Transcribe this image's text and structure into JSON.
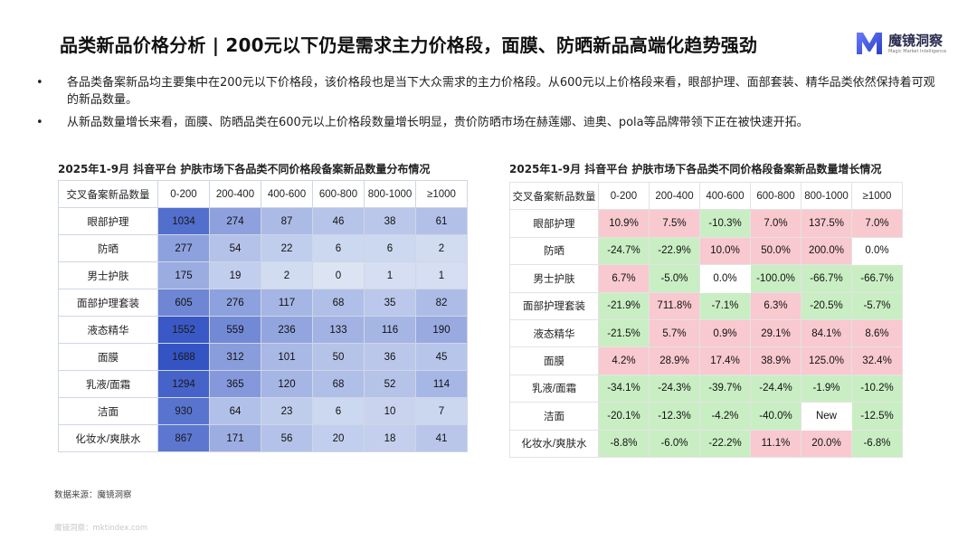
{
  "title": "品类新品价格分析 | 200元以下仍是需求主力价格段，面膜、防晒新品高端化趋势强劲",
  "brand": {
    "name": "魔镜洞察",
    "subtitle": "Magic Market Intelligence",
    "color": "#3b4fd8"
  },
  "bullets": [
    "各品类备案新品均主要集中在200元以下价格段，该价格段也是当下大众需求的主力价格段。从600元以上价格段来看，眼部护理、面部套装、精华品类依然保持着可观的新品数量。",
    "从新品数量增长来看，面膜、防晒品类在600元以上价格段数量增长明显，贵价防晒市场在赫莲娜、迪奥、pola等品牌带领下正在被快速开拓。"
  ],
  "bullet_mark": "•",
  "table1": {
    "title": "2025年1-9月 抖音平台 护肤市场下各品类不同价格段备案新品数量分布情况",
    "corner": "交叉备案新品数量",
    "columns": [
      "0-200",
      "200-400",
      "400-600",
      "600-800",
      "800-1000",
      "≥1000"
    ],
    "rows": [
      {
        "label": "眼部护理",
        "values": [
          "1034",
          "274",
          "87",
          "46",
          "38",
          "61"
        ]
      },
      {
        "label": "防晒",
        "values": [
          "277",
          "54",
          "22",
          "6",
          "6",
          "2"
        ]
      },
      {
        "label": "男士护肤",
        "values": [
          "175",
          "19",
          "2",
          "0",
          "1",
          "1"
        ]
      },
      {
        "label": "面部护理套装",
        "values": [
          "605",
          "276",
          "117",
          "68",
          "35",
          "82"
        ]
      },
      {
        "label": "液态精华",
        "values": [
          "1552",
          "559",
          "236",
          "133",
          "116",
          "190"
        ]
      },
      {
        "label": "面膜",
        "values": [
          "1688",
          "312",
          "101",
          "50",
          "36",
          "45"
        ]
      },
      {
        "label": "乳液/面霜",
        "values": [
          "1294",
          "365",
          "120",
          "68",
          "52",
          "114"
        ]
      },
      {
        "label": "洁面",
        "values": [
          "930",
          "64",
          "23",
          "6",
          "10",
          "7"
        ]
      },
      {
        "label": "化妆水/爽肤水",
        "values": [
          "867",
          "171",
          "56",
          "20",
          "18",
          "41"
        ]
      }
    ]
  },
  "table2": {
    "title": "2025年1-9月 抖音平台 护肤市场下各品类不同价格段备案新品数量增长情况",
    "corner": "交叉备案新品数量",
    "columns": [
      "0-200",
      "200-400",
      "400-600",
      "600-800",
      "800-1000",
      "≥1000"
    ],
    "rows": [
      {
        "label": "眼部护理",
        "values": [
          "10.9%",
          "7.5%",
          "-10.3%",
          "7.0%",
          "137.5%",
          "7.0%"
        ]
      },
      {
        "label": "防晒",
        "values": [
          "-24.7%",
          "-22.9%",
          "10.0%",
          "50.0%",
          "200.0%",
          "0.0%"
        ]
      },
      {
        "label": "男士护肤",
        "values": [
          "6.7%",
          "-5.0%",
          "0.0%",
          "-100.0%",
          "-66.7%",
          "-66.7%"
        ]
      },
      {
        "label": "面部护理套装",
        "values": [
          "-21.9%",
          "711.8%",
          "-7.1%",
          "6.3%",
          "-20.5%",
          "-5.7%"
        ]
      },
      {
        "label": "液态精华",
        "values": [
          "-21.5%",
          "5.7%",
          "0.9%",
          "29.1%",
          "84.1%",
          "8.6%"
        ]
      },
      {
        "label": "面膜",
        "values": [
          "4.2%",
          "28.9%",
          "17.4%",
          "38.9%",
          "125.0%",
          "32.4%"
        ]
      },
      {
        "label": "乳液/面霜",
        "values": [
          "-34.1%",
          "-24.3%",
          "-39.7%",
          "-24.4%",
          "-1.9%",
          "-10.2%"
        ]
      },
      {
        "label": "洁面",
        "values": [
          "-20.1%",
          "-12.3%",
          "-4.2%",
          "-40.0%",
          "New",
          "-12.5%"
        ]
      },
      {
        "label": "化妆水/爽肤水",
        "values": [
          "-8.8%",
          "-6.0%",
          "-22.2%",
          "11.1%",
          "20.0%",
          "-6.8%"
        ]
      }
    ],
    "colors": {
      "positive": "#f8c9cf",
      "negative": "#c9eec3",
      "neutral": "#ffffff"
    }
  },
  "source": "数据来源：魔镜洞察",
  "footer": "魔镜洞察：mktindex.com"
}
